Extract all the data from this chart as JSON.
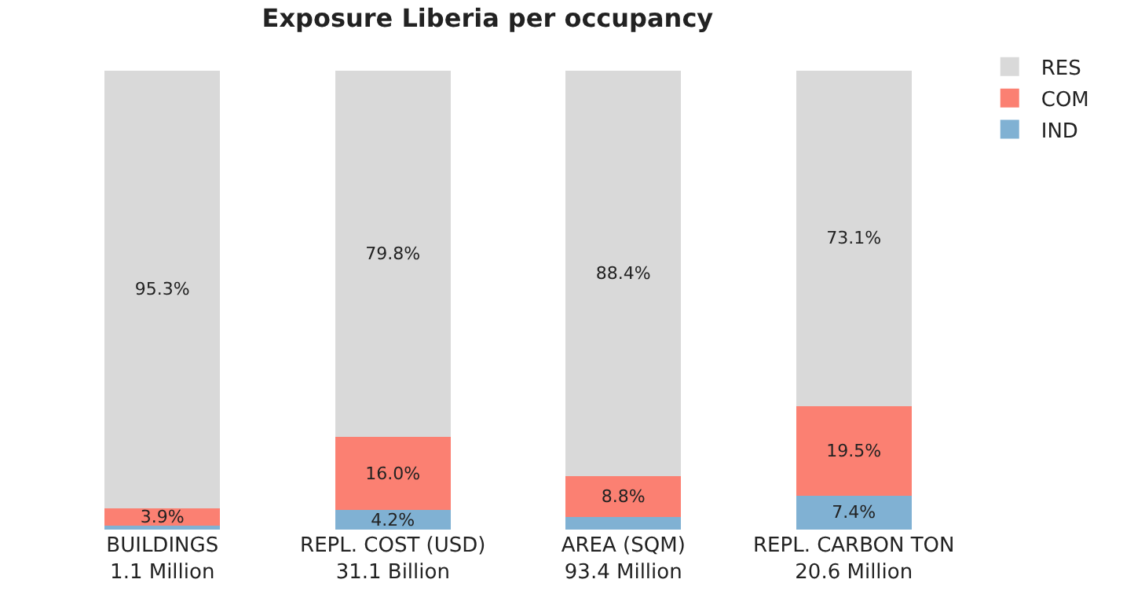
{
  "chart_data": {
    "type": "bar",
    "title": "Exposure Liberia per occupancy",
    "stacked": true,
    "categories": [
      "BUILDINGS\n1.1 Million",
      "REPL. COST (USD)\n31.1 Billion",
      "AREA (SQM)\n93.4 Million",
      "REPL. CARBON TON\n20.6 Million"
    ],
    "series": [
      {
        "name": "IND",
        "color": "#80b1d3",
        "values": [
          0.8,
          4.2,
          2.8,
          7.4
        ],
        "value_labels": [
          null,
          "4.2%",
          null,
          "7.4%"
        ]
      },
      {
        "name": "COM",
        "color": "#fb8072",
        "values": [
          3.9,
          16.0,
          8.8,
          19.5
        ],
        "value_labels": [
          "3.9%",
          "16.0%",
          "8.8%",
          "19.5%"
        ]
      },
      {
        "name": "RES",
        "color": "#d9d9d9",
        "values": [
          95.3,
          79.8,
          88.4,
          73.1
        ],
        "value_labels": [
          "95.3%",
          "79.8%",
          "88.4%",
          "73.1%"
        ]
      }
    ],
    "ylim": [
      0,
      100
    ],
    "tick_labels": "x",
    "legend": "top right"
  }
}
